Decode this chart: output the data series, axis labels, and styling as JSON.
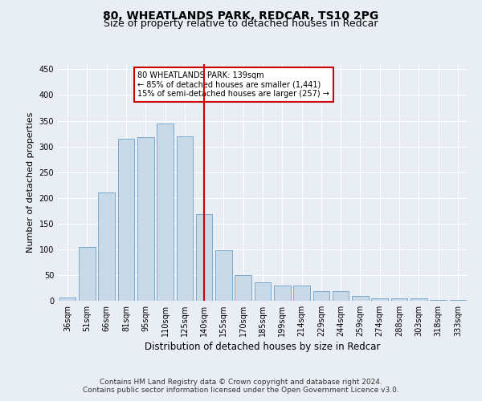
{
  "title1": "80, WHEATLANDS PARK, REDCAR, TS10 2PG",
  "title2": "Size of property relative to detached houses in Redcar",
  "xlabel": "Distribution of detached houses by size in Redcar",
  "ylabel": "Number of detached properties",
  "categories": [
    "36sqm",
    "51sqm",
    "66sqm",
    "81sqm",
    "95sqm",
    "110sqm",
    "125sqm",
    "140sqm",
    "155sqm",
    "170sqm",
    "185sqm",
    "199sqm",
    "214sqm",
    "229sqm",
    "244sqm",
    "259sqm",
    "274sqm",
    "288sqm",
    "303sqm",
    "318sqm",
    "333sqm"
  ],
  "values": [
    7,
    105,
    210,
    315,
    318,
    345,
    320,
    168,
    98,
    50,
    36,
    30,
    30,
    18,
    18,
    9,
    4,
    4,
    5,
    2,
    2
  ],
  "bar_color": "#c9d9e8",
  "bar_edge_color": "#7aaad0",
  "vline_x": 7,
  "vline_color": "#cc0000",
  "annotation_text": "80 WHEATLANDS PARK: 139sqm\n← 85% of detached houses are smaller (1,441)\n15% of semi-detached houses are larger (257) →",
  "annotation_box_color": "#ffffff",
  "annotation_box_edge_color": "#cc0000",
  "ylim": [
    0,
    460
  ],
  "yticks": [
    0,
    50,
    100,
    150,
    200,
    250,
    300,
    350,
    400,
    450
  ],
  "footer1": "Contains HM Land Registry data © Crown copyright and database right 2024.",
  "footer2": "Contains public sector information licensed under the Open Government Licence v3.0.",
  "bg_color": "#e8eef4",
  "plot_bg_color": "#e8eef4",
  "grid_color": "#ffffff",
  "title1_fontsize": 10,
  "title2_fontsize": 9,
  "xlabel_fontsize": 8.5,
  "ylabel_fontsize": 8,
  "tick_fontsize": 7,
  "footer_fontsize": 6.5
}
